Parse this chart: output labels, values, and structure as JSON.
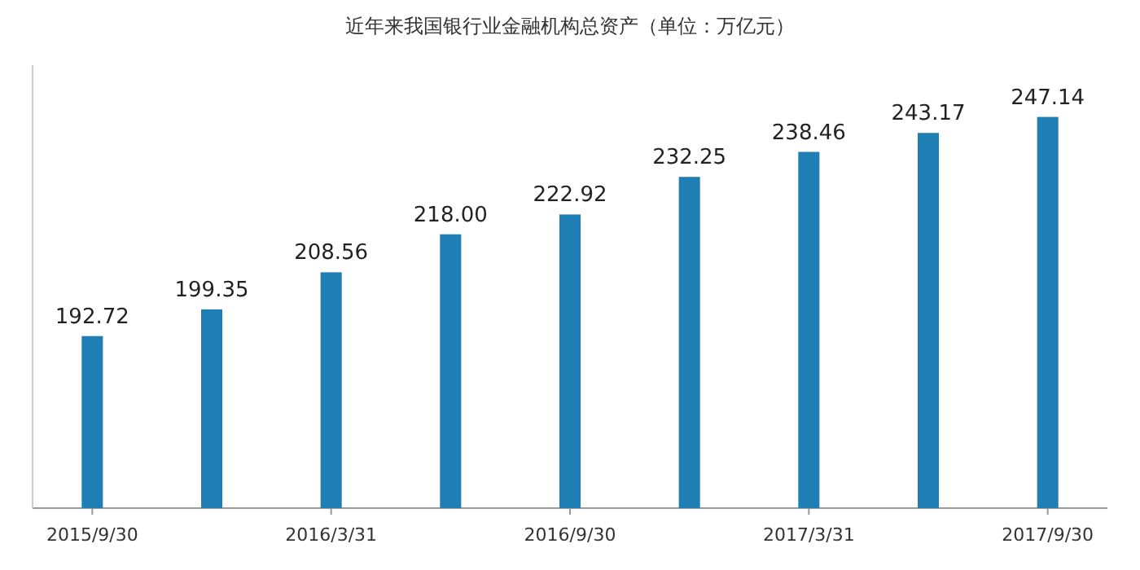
{
  "chart_data": {
    "type": "bar",
    "title": "近年来我国银行业金融机构总资产（单位：万亿元）",
    "categories": [
      "2015/9/30",
      null,
      "2016/3/31",
      null,
      "2016/9/30",
      null,
      "2017/3/31",
      null,
      "2017/9/30"
    ],
    "values": [
      192.72,
      199.35,
      208.56,
      218.0,
      222.92,
      232.25,
      238.46,
      243.17,
      247.14
    ],
    "value_labels": [
      "192.72",
      "199.35",
      "208.56",
      "218.00",
      "222.92",
      "232.25",
      "238.46",
      "243.17",
      "247.14"
    ],
    "color": "#1f7fb4",
    "ylim": [
      150,
      260
    ],
    "tick_labels": "x"
  }
}
